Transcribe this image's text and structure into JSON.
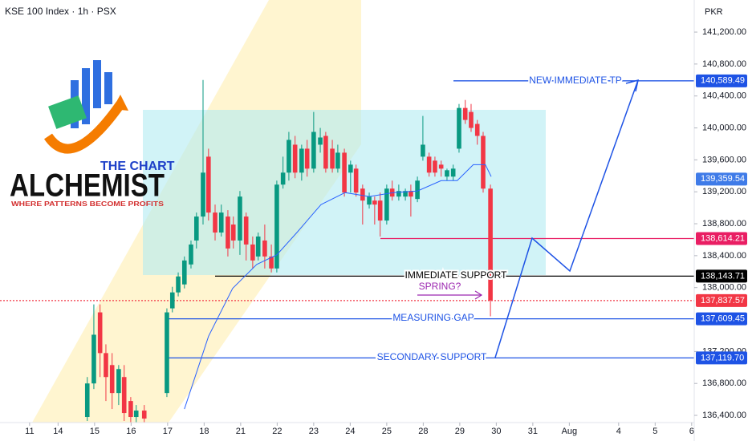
{
  "chart_data": {
    "type": "candlestick",
    "title": "KSE 100 Index · 1h · PSX",
    "currency_label": "PKR",
    "logo": {
      "line1": "THE CHART",
      "line2": "ALCHEMIST",
      "tagline": "WHERE PATTERNS BECOME PROFITS"
    },
    "xlim": [
      -2.59,
      16.42
    ],
    "ylim": [
      136310,
      141602
    ],
    "xticks": [
      {
        "value": -1.78,
        "label": "11"
      },
      {
        "value": -1,
        "label": "14"
      },
      {
        "value": 0,
        "label": "15"
      },
      {
        "value": 1,
        "label": "16"
      },
      {
        "value": 2,
        "label": "17"
      },
      {
        "value": 3,
        "label": "18"
      },
      {
        "value": 4,
        "label": "21"
      },
      {
        "value": 5,
        "label": "22"
      },
      {
        "value": 6,
        "label": "23"
      },
      {
        "value": 7,
        "label": "24"
      },
      {
        "value": 8,
        "label": "25"
      },
      {
        "value": 9,
        "label": "28"
      },
      {
        "value": 10,
        "label": "29"
      },
      {
        "value": 11,
        "label": "30"
      },
      {
        "value": 12,
        "label": "31"
      },
      {
        "value": 13,
        "label": "Aug"
      },
      {
        "value": 14.35,
        "label": "4"
      },
      {
        "value": 15.35,
        "label": "5"
      },
      {
        "value": 16.35,
        "label": "6"
      }
    ],
    "yticks": [
      {
        "value": 141200,
        "label": "141,200.00"
      },
      {
        "value": 140800,
        "label": "140,800.00"
      },
      {
        "value": 140400,
        "label": "140,400.00"
      },
      {
        "value": 140000,
        "label": "140,000.00"
      },
      {
        "value": 139600,
        "label": "139,600.00"
      },
      {
        "value": 139200,
        "label": "139,200.00"
      },
      {
        "value": 138800,
        "label": "138,800.00"
      },
      {
        "value": 138400,
        "label": "138,400.00"
      },
      {
        "value": 138000,
        "label": "138,000.00"
      },
      {
        "value": 137200,
        "label": "137,200.00"
      },
      {
        "value": 136800,
        "label": "136,800.00"
      },
      {
        "value": 136400,
        "label": "136,400.00"
      }
    ],
    "up_color": "#089981",
    "down_color": "#f23645",
    "candles": {
      "x": [
        -0.2,
        -0.02,
        0.15,
        0.31,
        0.48,
        0.66,
        0.81,
        0.99,
        1.14,
        1.36,
        1.98,
        2.13,
        2.29,
        2.46,
        2.64,
        2.79,
        2.97,
        3.12,
        3.3,
        3.47,
        3.65,
        3.8,
        3.98,
        4.15,
        4.33,
        4.48,
        4.66,
        4.84,
        4.99,
        5.16,
        5.32,
        5.49,
        5.67,
        5.82,
        6.0,
        6.18,
        6.33,
        6.51,
        6.66,
        6.84,
        7.01,
        7.16,
        7.34,
        7.52,
        7.67,
        7.82,
        8.0,
        8.15,
        8.33,
        8.51,
        8.66,
        8.84,
        8.99,
        9.16,
        9.32,
        9.49,
        9.65,
        9.82,
        9.98,
        10.15,
        10.31,
        10.48,
        10.64,
        10.84
      ],
      "open": [
        136380,
        136800,
        137690,
        137180,
        137030,
        136680,
        136880,
        136580,
        136380,
        136460,
        136680,
        137740,
        137940,
        138040,
        138290,
        138590,
        138890,
        139640,
        138940,
        138690,
        138890,
        138790,
        138590,
        138890,
        138540,
        138390,
        138590,
        138390,
        138240,
        139290,
        139440,
        139790,
        139440,
        139740,
        139490,
        139790,
        139900,
        139740,
        139490,
        139690,
        139440,
        139490,
        139240,
        139040,
        139090,
        139090,
        138840,
        139240,
        139140,
        139140,
        139210,
        139110,
        139640,
        139640,
        139590,
        139540,
        139390,
        139390,
        139740,
        140250,
        140200,
        140050,
        139900,
        139240
      ],
      "high": [
        136880,
        137790,
        137790,
        137290,
        137180,
        137030,
        137030,
        136630,
        136530,
        136530,
        137740,
        138010,
        138190,
        138390,
        138590,
        138940,
        140600,
        139740,
        139040,
        139040,
        138970,
        138890,
        139210,
        138940,
        138640,
        138690,
        138790,
        138540,
        139340,
        139640,
        139950,
        139900,
        139790,
        139850,
        140200,
        140000,
        139950,
        139850,
        139790,
        139740,
        139590,
        139540,
        139290,
        139190,
        139140,
        139190,
        139290,
        139340,
        139290,
        139240,
        139290,
        139390,
        140150,
        139690,
        139640,
        139590,
        139490,
        139540,
        140300,
        140350,
        140300,
        140100,
        139950,
        139290
      ],
      "low": [
        136330,
        136730,
        136880,
        136580,
        136480,
        136530,
        136330,
        136310,
        136310,
        136310,
        136630,
        137690,
        137890,
        137990,
        138240,
        138490,
        138790,
        138840,
        138590,
        138640,
        138390,
        138490,
        138410,
        138340,
        138240,
        138340,
        138240,
        138190,
        138190,
        139240,
        139340,
        139370,
        139340,
        139390,
        139440,
        139690,
        139440,
        139440,
        139440,
        139140,
        139190,
        139140,
        138790,
        138990,
        138790,
        138640,
        138790,
        139090,
        139090,
        139090,
        138890,
        139070,
        139590,
        139390,
        139390,
        139390,
        139340,
        139340,
        139690,
        140050,
        139950,
        139790,
        139190,
        137640
      ],
      "close": [
        136800,
        137410,
        137180,
        136880,
        136680,
        136980,
        136430,
        136380,
        136460,
        136360,
        137690,
        137940,
        138140,
        138340,
        138540,
        138890,
        139440,
        138940,
        138690,
        138940,
        138490,
        138590,
        139140,
        138540,
        138340,
        138640,
        138390,
        138240,
        139290,
        139440,
        139850,
        139440,
        139740,
        139490,
        139950,
        139880,
        139490,
        139490,
        139690,
        139190,
        139540,
        139190,
        139090,
        139140,
        139040,
        138840,
        139240,
        139140,
        139210,
        139210,
        139140,
        139340,
        139790,
        139440,
        139440,
        139490,
        139470,
        139490,
        140250,
        140100,
        140000,
        139900,
        139240,
        137840
      ]
    },
    "moving_average": {
      "color": "#2962ff",
      "x": [
        2.46,
        3.12,
        3.78,
        4.44,
        4.99,
        5.54,
        6.2,
        6.86,
        7.52,
        8.18,
        8.84,
        9.49,
        9.93,
        10.37,
        10.7,
        10.86
      ],
      "values": [
        136480,
        137390,
        137990,
        138290,
        138410,
        138690,
        139040,
        139190,
        139140,
        139190,
        139210,
        139340,
        139340,
        139540,
        139540,
        139390
      ]
    },
    "price_labels": [
      {
        "value": 140589.49,
        "label": "140,589.49",
        "color": "#1e53e5"
      },
      {
        "value": 139359.54,
        "label": "139,359.54",
        "color": "#3f7be8"
      },
      {
        "value": 138614.21,
        "label": "138,614.21",
        "color": "#e91e63"
      },
      {
        "value": 138143.71,
        "label": "138,143.71",
        "color": "#000000"
      },
      {
        "value": 137837.57,
        "label": "137,837.57",
        "color": "#f23645"
      },
      {
        "value": 137609.45,
        "label": "137,609.45",
        "color": "#1e53e5"
      },
      {
        "value": 137119.7,
        "label": "137,119.70",
        "color": "#1e53e5"
      }
    ],
    "annotations": [
      "NEW IMMEDIATE TP",
      "IMMEDIATE SUPPORT",
      "SPRING?",
      "MEASURING GAP",
      "SECONDARY SUPPORT"
    ]
  }
}
